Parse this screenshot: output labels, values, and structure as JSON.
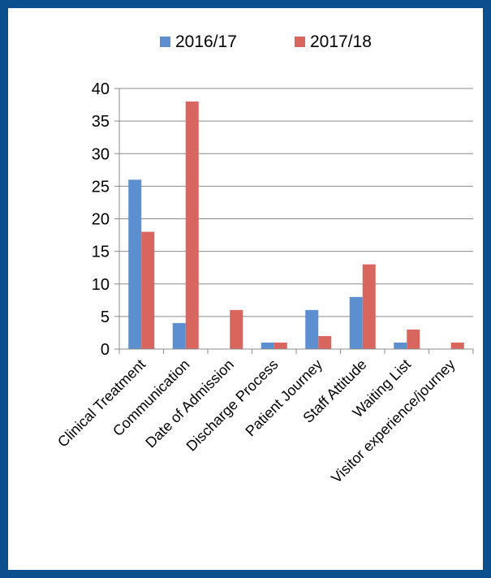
{
  "chart_data": {
    "type": "bar",
    "title": "",
    "xlabel": "",
    "ylabel": "",
    "categories": [
      "Clinical Treatment",
      "Communication",
      "Date of Admission",
      "Discharge Process",
      "Patient Journey",
      "Staff Attitude",
      "Waiting List",
      "Visitor experience/journey"
    ],
    "series": [
      {
        "name": "2016/17",
        "color": "#5b8fd0",
        "values": [
          26,
          4,
          0,
          1,
          6,
          8,
          1,
          0
        ]
      },
      {
        "name": "2017/18",
        "color": "#d9655f",
        "values": [
          18,
          38,
          6,
          1,
          2,
          13,
          3,
          1
        ]
      }
    ],
    "ylim": [
      0,
      40
    ],
    "yticks": [
      0,
      5,
      10,
      15,
      20,
      25,
      30,
      35,
      40
    ],
    "grid": true,
    "legend": "top-center",
    "border_color": "#0b4f8f"
  }
}
